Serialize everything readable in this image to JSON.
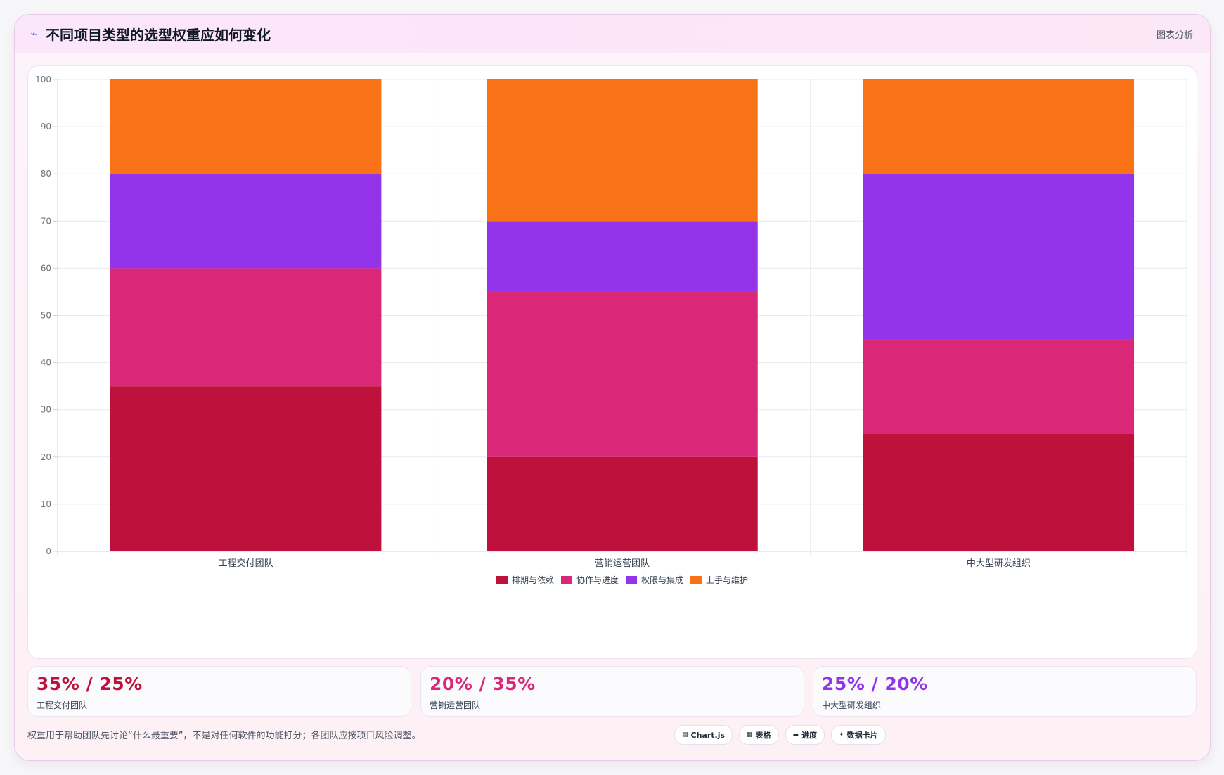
{
  "header": {
    "icon": "line-chart-icon",
    "title": "不同项目类型的选型权重应如何变化",
    "tag": "图表分析"
  },
  "chart_data": {
    "type": "bar",
    "stacked": true,
    "categories": [
      "工程交付团队",
      "营销运营团队",
      "中大型研发组织"
    ],
    "series": [
      {
        "name": "排期与依赖",
        "color": "#be123c",
        "values": [
          35,
          20,
          25
        ]
      },
      {
        "name": "协作与进度",
        "color": "#db2777",
        "values": [
          25,
          35,
          20
        ]
      },
      {
        "name": "权限与集成",
        "color": "#9333ea",
        "values": [
          20,
          15,
          35
        ]
      },
      {
        "name": "上手与维护",
        "color": "#f97316",
        "values": [
          20,
          30,
          20
        ]
      }
    ],
    "ylim": [
      0,
      100
    ],
    "yticks": [
      0,
      10,
      20,
      30,
      40,
      50,
      60,
      70,
      80,
      90,
      100
    ],
    "grid": true,
    "legend": "bottom"
  },
  "stats": [
    {
      "value": "35% / 25%",
      "label": "工程交付团队",
      "color": "#be123c"
    },
    {
      "value": "20% / 35%",
      "label": "营销运营团队",
      "color": "#db2777"
    },
    {
      "value": "25% / 20%",
      "label": "中大型研发组织",
      "color": "#9333ea"
    }
  ],
  "footer": {
    "note": "权重用于帮助团队先讨论“什么最重要”，不是对任何软件的功能打分；各团队应按项目风险调整。",
    "chips": [
      {
        "icon": "▤",
        "icon_name": "chart-icon",
        "label": "Chart.js"
      },
      {
        "icon": "▦",
        "icon_name": "table-icon",
        "label": "表格"
      },
      {
        "icon": "▬",
        "icon_name": "progress-icon",
        "label": "进度"
      },
      {
        "icon": "✦",
        "icon_name": "sparkle-icon",
        "label": "数据卡片"
      }
    ]
  }
}
